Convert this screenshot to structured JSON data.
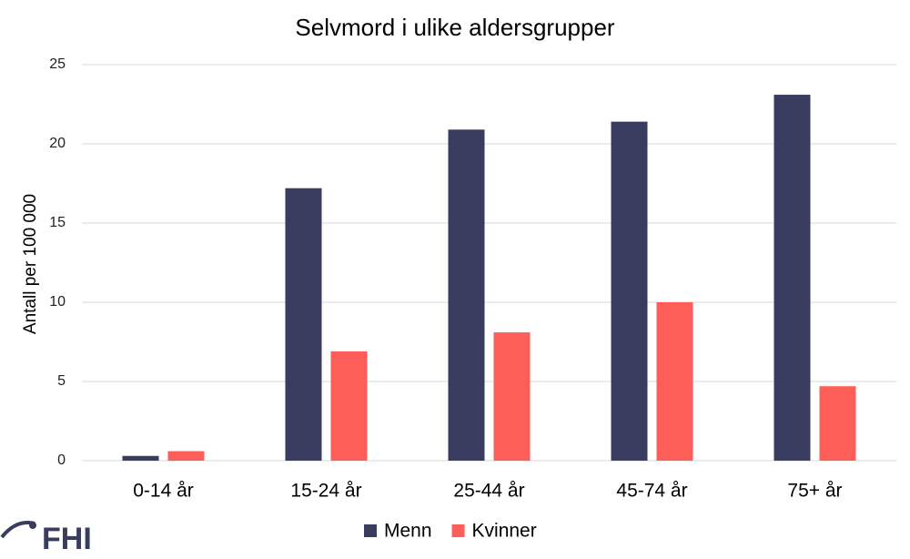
{
  "chart_data": {
    "type": "bar",
    "title": "Selvmord i ulike aldersgrupper",
    "ylabel": "Antall per 100 000",
    "categories": [
      "0-14 år",
      "15-24 år",
      "25-44 år",
      "45-74 år",
      "75+ år"
    ],
    "series": [
      {
        "name": "Menn",
        "color": "#383c5e",
        "values": [
          0.3,
          17.2,
          20.9,
          21.4,
          23.1
        ]
      },
      {
        "name": "Kvinner",
        "color": "#fd5f58",
        "values": [
          0.6,
          6.9,
          8.1,
          10.0,
          4.7
        ]
      }
    ],
    "ylim": [
      0,
      25
    ],
    "yticks": [
      0,
      5,
      10,
      15,
      20,
      25
    ],
    "grid": true,
    "legend": "bottom"
  },
  "logo": "FHI"
}
